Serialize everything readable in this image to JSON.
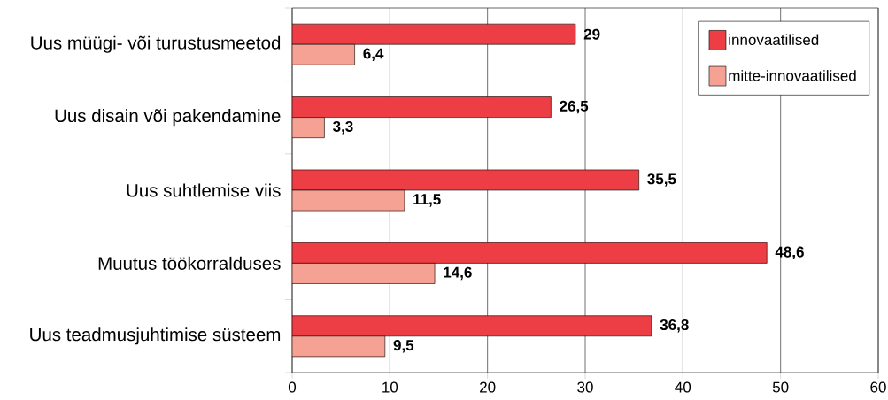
{
  "chart_data": {
    "type": "bar",
    "orientation": "horizontal",
    "categories": [
      "Uus müügi- või turustusmeetod",
      "Uus disain või pakendamine",
      "Uus suhtlemise viis",
      "Muutus töökorralduses",
      "Uus teadmusjuhtimise süsteem"
    ],
    "series": [
      {
        "name": "innovaatilised",
        "color": "#ee3e45",
        "values": [
          29,
          26.5,
          35.5,
          48.6,
          36.8
        ],
        "value_labels": [
          "29",
          "26,5",
          "35,5",
          "48,6",
          "36,8"
        ]
      },
      {
        "name": "mitte-innovaatilised",
        "color": "#f5a193",
        "values": [
          6.4,
          3.3,
          11.5,
          14.6,
          9.5
        ],
        "value_labels": [
          "6,4",
          "3,3",
          "11,5",
          "14,6",
          "9,5"
        ]
      }
    ],
    "xlim": [
      0,
      60
    ],
    "xticks": [
      0,
      10,
      20,
      30,
      40,
      50,
      60
    ],
    "grid": "x",
    "legend": "top right"
  }
}
